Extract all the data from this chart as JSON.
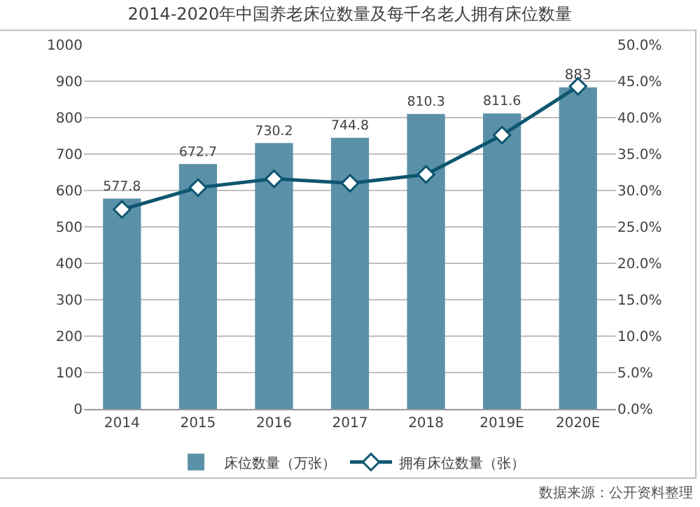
{
  "chart_data": {
    "type": "bar",
    "title": "2014-2020年中国养老床位数量及每千名老人拥有床位数量",
    "categories": [
      "2014",
      "2015",
      "2016",
      "2017",
      "2018",
      "2019E",
      "2020E"
    ],
    "series": [
      {
        "name": "床位数量（万张）",
        "color": "#5b91a8",
        "values": [
          577.8,
          672.7,
          730.2,
          744.8,
          810.3,
          811.6,
          883
        ],
        "data_labels": true
      },
      {
        "name": "拥有床位数量（张）",
        "type": "line",
        "axis": "y2",
        "color": "#0e5670",
        "marker": "diamond",
        "values": [
          27.4,
          30.4,
          31.6,
          31.0,
          32.2,
          37.6,
          44.3
        ]
      }
    ],
    "ylim": [
      0,
      1000
    ],
    "yticks": [
      0,
      100,
      200,
      300,
      400,
      500,
      600,
      700,
      800,
      900,
      1000
    ],
    "y2lim": [
      0,
      50
    ],
    "y2ticks": [
      {
        "value": 0,
        "label": "0.0%"
      },
      {
        "value": 5,
        "label": "5.0%"
      },
      {
        "value": 10,
        "label": "10.0%"
      },
      {
        "value": 15,
        "label": "15.0%"
      },
      {
        "value": 20,
        "label": "20.0%"
      },
      {
        "value": 25,
        "label": "25.0%"
      },
      {
        "value": 30,
        "label": "30.0%"
      },
      {
        "value": 35,
        "label": "35.0%"
      },
      {
        "value": 40,
        "label": "40.0%"
      },
      {
        "value": 45,
        "label": "45.0%"
      },
      {
        "value": 50,
        "label": "50.0%"
      }
    ],
    "grid": "y",
    "legend": "bottom",
    "annotations": [
      "数据来源：公开资料整理"
    ]
  }
}
